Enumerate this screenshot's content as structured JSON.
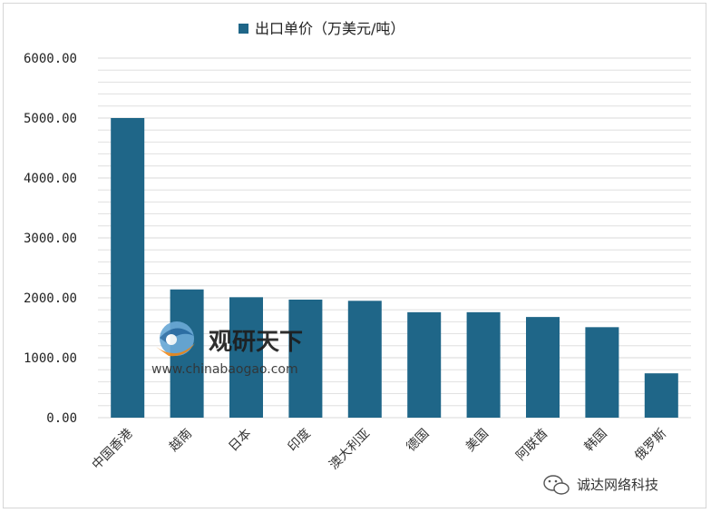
{
  "chart_data": {
    "type": "bar",
    "legend": "出口单价（万美元/吨）",
    "legend_position": "top",
    "categories": [
      "中国香港",
      "越南",
      "日本",
      "印度",
      "澳大利亚",
      "德国",
      "美国",
      "阿联酋",
      "韩国",
      "俄罗斯"
    ],
    "series": [
      {
        "name": "出口单价（万美元/吨）",
        "values": [
          5000,
          2140,
          2010,
          1970,
          1950,
          1760,
          1760,
          1680,
          1510,
          740
        ]
      }
    ],
    "y_ticks": [
      "0.00",
      "1000.00",
      "2000.00",
      "3000.00",
      "4000.00",
      "5000.00",
      "6000.00"
    ],
    "ylim": [
      0,
      6000
    ],
    "grid": true,
    "colors": {
      "bar": "#1f6688",
      "grid": "#d9d9d9"
    }
  },
  "watermark": {
    "name": "观研天下",
    "url": "www.chinabaogao.com"
  },
  "corner_label": "诚达网络科技"
}
